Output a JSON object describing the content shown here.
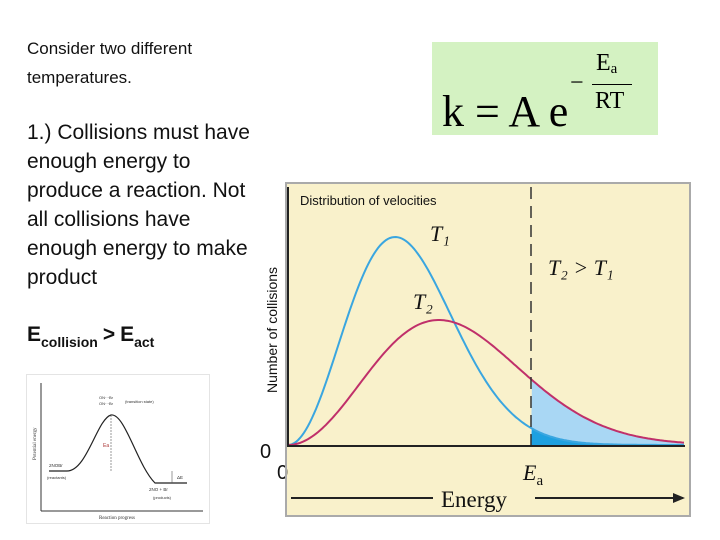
{
  "slide": {
    "intro_text": "Consider two different temperatures.",
    "point_text": "1.) Collisions must have enough energy to produce a reaction. Not all collisions have enough energy to make product",
    "ecollision": {
      "e": "E",
      "sub_collision": "collision",
      "gt": ">",
      "e2": "E",
      "sub_act": "act"
    }
  },
  "formula": {
    "lhs": "k = A e",
    "minus": "−",
    "numerator": "E",
    "numerator_sub": "a",
    "denominator": "RT",
    "background_color": "#d4f2c2"
  },
  "diagram": {
    "y_axis_label": "Potential energy",
    "x_axis_label": "Reaction progress",
    "labels": [
      "ON···Br",
      "ON···Br",
      "(transition state)",
      "2NOBr",
      "(reactants)",
      "2NO + Br",
      "(products)",
      "ΔE",
      "Ea"
    ]
  },
  "chart_data": {
    "type": "line",
    "title": "Distribution of velocities",
    "ylabel": "Number of collisions",
    "xlabel": "Energy",
    "x_tick_labels": [
      "0"
    ],
    "y_tick_labels": [
      "0"
    ],
    "threshold_label": "E",
    "threshold_label_sub": "a",
    "annotation": "T₂ > T₁",
    "series": [
      {
        "name": "T₁",
        "color": "#3aa6e0"
      },
      {
        "name": "T₂",
        "color": "#c0306a"
      }
    ],
    "colors": {
      "background": "#f9f1cb",
      "frame": "#aaaaaa",
      "area_t1": "#1ea0e0",
      "area_t2": "#a9d7f4"
    }
  }
}
